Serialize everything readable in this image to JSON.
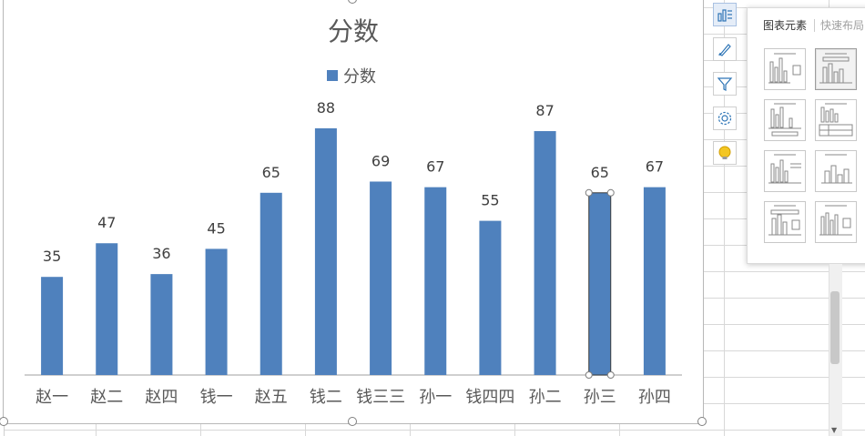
{
  "chart_data": {
    "type": "bar",
    "title": "分数",
    "categories": [
      "赵一",
      "赵二",
      "赵四",
      "钱一",
      "赵五",
      "钱二",
      "钱三三",
      "孙一",
      "钱四四",
      "孙二",
      "孙三",
      "孙四"
    ],
    "series": [
      {
        "name": "分数",
        "values": [
          35,
          47,
          36,
          45,
          65,
          88,
          69,
          67,
          55,
          87,
          65,
          67
        ]
      }
    ],
    "data_labels": [
      "35",
      "47",
      "36",
      "45",
      "65",
      "88",
      "69",
      "67",
      "55",
      "87",
      "65",
      "67"
    ],
    "ylim": [
      0,
      100
    ],
    "grid": false,
    "legend": "top",
    "selected_category": "孙三",
    "bar_color": "#4f81bd"
  },
  "chart_tools": {
    "panel_tabs": [
      "图表元素",
      "快速布局"
    ],
    "tools": [
      "chart-elements-icon",
      "brush-icon",
      "filter-icon",
      "gear-icon",
      "bulb-icon"
    ]
  }
}
